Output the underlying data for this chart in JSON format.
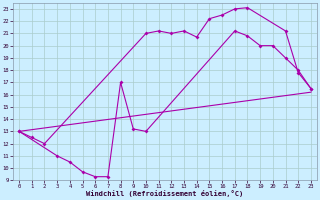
{
  "bg_color": "#cceeff",
  "grid_color": "#aacccc",
  "line_color": "#aa00aa",
  "xlim": [
    -0.5,
    23.5
  ],
  "ylim": [
    9,
    23.5
  ],
  "xticks": [
    0,
    1,
    2,
    3,
    4,
    5,
    6,
    7,
    8,
    9,
    10,
    11,
    12,
    13,
    14,
    15,
    16,
    17,
    18,
    19,
    20,
    21,
    22,
    23
  ],
  "yticks": [
    9,
    10,
    11,
    12,
    13,
    14,
    15,
    16,
    17,
    18,
    19,
    20,
    21,
    22,
    23
  ],
  "xlabel": "Windchill (Refroidissement éolien,°C)",
  "line1_x": [
    0,
    1,
    2,
    10,
    11,
    12,
    13,
    14,
    15,
    16,
    17,
    18,
    21,
    22,
    23
  ],
  "line1_y": [
    13,
    12.5,
    12.0,
    21.0,
    21.2,
    21.0,
    21.2,
    20.7,
    22.2,
    22.5,
    23.0,
    23.1,
    21.2,
    17.8,
    16.5
  ],
  "line2_x": [
    0,
    3,
    4,
    5,
    6,
    7,
    8,
    9,
    10,
    17,
    18,
    19,
    20,
    21,
    22,
    23
  ],
  "line2_y": [
    13,
    11.0,
    10.5,
    9.7,
    9.3,
    9.3,
    17.0,
    13.2,
    13.0,
    21.2,
    20.8,
    20.0,
    20.0,
    19.0,
    18.0,
    16.5
  ],
  "line3_x": [
    0,
    23
  ],
  "line3_y": [
    13.0,
    16.2
  ]
}
